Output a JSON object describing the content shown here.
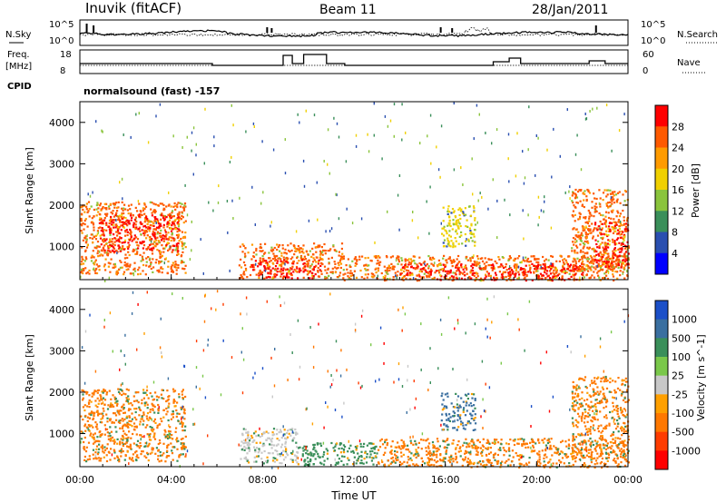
{
  "header": {
    "station": "Inuvik (fitACF)",
    "beam": "Beam 11",
    "date": "28/Jan/2011"
  },
  "noise_panel": {
    "left_label": "N.Sky",
    "right_label": "N.Search",
    "left_ticks": [
      "10^5",
      "10^0"
    ],
    "right_ticks": [
      "10^5",
      "10^0"
    ]
  },
  "freq_panel": {
    "left_label_1": "Freq.",
    "left_label_2": "[MHz]",
    "right_label": "Nave",
    "left_ticks": [
      "18",
      "8"
    ],
    "right_ticks": [
      "60",
      "0"
    ]
  },
  "cpid": {
    "label": "CPID",
    "value": "normalsound (fast) -157"
  },
  "colors": {
    "power_scale": [
      "#0000ff",
      "#2a4fb0",
      "#3a8f5a",
      "#8ac43c",
      "#f0d000",
      "#ff9b00",
      "#ff5a00",
      "#ff0000"
    ],
    "velocity_scale": [
      "#1b4fc8",
      "#3a6fa0",
      "#3a8f5a",
      "#7ac84a",
      "#c8c8c8",
      "#ffa000",
      "#ff7800",
      "#ff3c00",
      "#ff0000"
    ]
  },
  "chart_data": [
    {
      "type": "heatmap",
      "panel": "power",
      "ylabel": "Slant Range [km]",
      "yticks": [
        "1000",
        "2000",
        "3000",
        "4000"
      ],
      "ylim": [
        200,
        4500
      ],
      "xlim": [
        0,
        24
      ],
      "colorbar_label": "Power [dB]",
      "colorbar_ticks": [
        "4",
        "8",
        "12",
        "16",
        "20",
        "24",
        "28"
      ],
      "regions": [
        {
          "t0": 0.0,
          "t1": 4.6,
          "r0": 350,
          "r1": 2100,
          "level": 24
        },
        {
          "t0": 0.8,
          "t1": 4.3,
          "r0": 900,
          "r1": 1800,
          "level": 28
        },
        {
          "t0": 6.9,
          "t1": 11.5,
          "r0": 250,
          "r1": 1100,
          "level": 24
        },
        {
          "t0": 7.5,
          "t1": 10.5,
          "r0": 250,
          "r1": 700,
          "level": 28
        },
        {
          "t0": 11.5,
          "t1": 24.0,
          "r0": 200,
          "r1": 800,
          "level": 24
        },
        {
          "t0": 14.0,
          "t1": 22.0,
          "r0": 200,
          "r1": 600,
          "level": 28
        },
        {
          "t0": 15.8,
          "t1": 17.3,
          "r0": 1000,
          "r1": 2000,
          "level": 16
        },
        {
          "t0": 21.5,
          "t1": 24.0,
          "r0": 400,
          "r1": 2400,
          "level": 24
        },
        {
          "t0": 22.5,
          "t1": 24.0,
          "r0": 500,
          "r1": 1600,
          "level": 28
        }
      ]
    },
    {
      "type": "heatmap",
      "panel": "velocity",
      "ylabel": "Slant Range [km]",
      "yticks": [
        "1000",
        "2000",
        "3000",
        "4000"
      ],
      "ylim": [
        200,
        4500
      ],
      "xlim": [
        0,
        24
      ],
      "xticks": [
        "00:00",
        "04:00",
        "08:00",
        "12:00",
        "16:00",
        "20:00",
        "00:00"
      ],
      "xlabel": "Time UT",
      "colorbar_label": "Velocity [m s^-1]",
      "colorbar_ticks": [
        "1000",
        "500",
        "100",
        "25",
        "-25",
        "-100",
        "-500",
        "-1000"
      ],
      "regions": [
        {
          "t0": 0.0,
          "t1": 4.6,
          "r0": 350,
          "r1": 2100,
          "level": -100
        },
        {
          "t0": 7.0,
          "t1": 9.5,
          "r0": 300,
          "r1": 1150,
          "level": 0
        },
        {
          "t0": 9.5,
          "t1": 13.0,
          "r0": 250,
          "r1": 800,
          "level": 100
        },
        {
          "t0": 13.0,
          "t1": 24.0,
          "r0": 200,
          "r1": 900,
          "level": -100
        },
        {
          "t0": 15.8,
          "t1": 17.3,
          "r0": 1100,
          "r1": 2000,
          "level": 500
        },
        {
          "t0": 21.5,
          "t1": 24.0,
          "r0": 400,
          "r1": 2400,
          "level": -100
        }
      ]
    }
  ]
}
